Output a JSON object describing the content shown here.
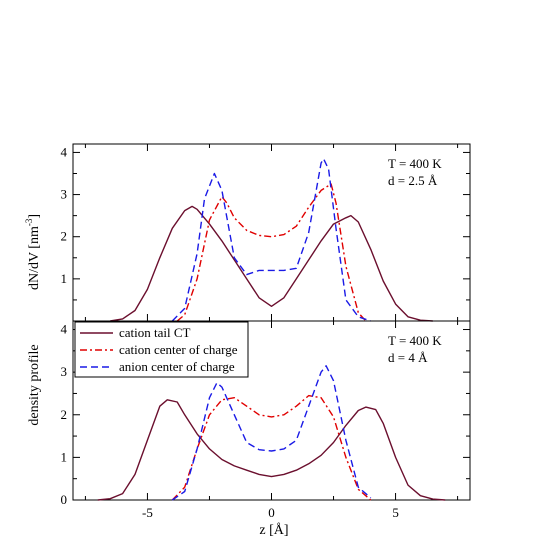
{
  "chart_data": {
    "type": "line",
    "xlabel": "z [Å]",
    "ylabel_left": "density profile",
    "ylabel_right": "dN/dV   [nm",
    "ylabel_right_exp": "-3",
    "ylabel_right_close": "]",
    "xlim": [
      -8,
      8
    ],
    "xticks": [
      -5,
      0,
      5
    ],
    "xtick_labels": [
      "-5",
      "0",
      "5"
    ],
    "colors": {
      "cation_tail": "#6b0f2e",
      "cation_center": "#e00000",
      "anion_center": "#1a1ae6"
    },
    "legend": {
      "placement": "top-left of lower panel",
      "entries": [
        {
          "name": "cation tail CT",
          "series": "cation_tail"
        },
        {
          "name": "cation center of charge",
          "series": "cation_center"
        },
        {
          "name": "anion center of charge",
          "series": "anion_center"
        }
      ]
    },
    "panels": [
      {
        "id": "top",
        "annotation_lines": [
          "T = 400 K",
          "d = 2.5 Å"
        ],
        "ylim": [
          0,
          4.2
        ],
        "yticks": [
          0,
          1,
          2,
          3,
          4
        ],
        "ytick_labels": [
          "",
          "1",
          "2",
          "3",
          "4"
        ],
        "series": [
          {
            "key": "cation_tail",
            "style": "solid",
            "x": [
              -6.5,
              -6.0,
              -5.5,
              -5.0,
              -4.5,
              -4.0,
              -3.5,
              -3.2,
              -3.0,
              -2.5,
              -2.0,
              -1.5,
              -1.0,
              -0.5,
              0.0,
              0.5,
              1.0,
              1.5,
              2.0,
              2.5,
              3.0,
              3.2,
              3.5,
              4.0,
              4.5,
              5.0,
              5.5,
              6.0,
              6.5
            ],
            "y": [
              0.0,
              0.05,
              0.25,
              0.75,
              1.5,
              2.2,
              2.62,
              2.72,
              2.65,
              2.3,
              1.9,
              1.45,
              1.0,
              0.55,
              0.35,
              0.55,
              1.0,
              1.45,
              1.9,
              2.3,
              2.45,
              2.5,
              2.35,
              1.7,
              0.95,
              0.4,
              0.1,
              0.02,
              0.0
            ]
          },
          {
            "key": "cation_center",
            "style": "dashdot",
            "x": [
              -3.8,
              -3.5,
              -3.0,
              -2.5,
              -2.0,
              -1.8,
              -1.5,
              -1.0,
              -0.5,
              0.0,
              0.5,
              1.0,
              1.5,
              2.0,
              2.4,
              2.6,
              3.0,
              3.5,
              3.8
            ],
            "y": [
              0.0,
              0.15,
              1.0,
              2.4,
              2.95,
              2.8,
              2.45,
              2.15,
              2.03,
              2.0,
              2.05,
              2.25,
              2.7,
              3.1,
              3.25,
              2.8,
              1.3,
              0.2,
              0.0
            ]
          },
          {
            "key": "anion_center",
            "style": "dashed",
            "x": [
              -4.0,
              -3.5,
              -3.0,
              -2.7,
              -2.3,
              -2.0,
              -1.5,
              -1.0,
              -0.5,
              0.0,
              0.5,
              1.0,
              1.5,
              2.0,
              2.1,
              2.3,
              2.6,
              3.0,
              3.5,
              4.0
            ],
            "y": [
              0.0,
              0.3,
              1.6,
              2.9,
              3.5,
              3.1,
              1.5,
              1.1,
              1.2,
              1.2,
              1.2,
              1.25,
              2.1,
              3.75,
              3.85,
              3.6,
              2.2,
              0.5,
              0.1,
              0.0
            ]
          }
        ]
      },
      {
        "id": "bottom",
        "annotation_lines": [
          "T = 400 K",
          "d = 4 Å"
        ],
        "ylim": [
          0,
          4.2
        ],
        "yticks": [
          0,
          1,
          2,
          3,
          4
        ],
        "ytick_labels": [
          "0",
          "1",
          "2",
          "3",
          "4"
        ],
        "series": [
          {
            "key": "cation_tail",
            "style": "solid",
            "x": [
              -7.0,
              -6.5,
              -6.0,
              -5.5,
              -5.0,
              -4.5,
              -4.2,
              -3.8,
              -3.5,
              -3.0,
              -2.5,
              -2.0,
              -1.5,
              -1.0,
              -0.5,
              0.0,
              0.5,
              1.0,
              1.5,
              2.0,
              2.5,
              3.0,
              3.5,
              3.8,
              4.2,
              4.5,
              5.0,
              5.5,
              6.0,
              6.5,
              7.0
            ],
            "y": [
              0.0,
              0.03,
              0.15,
              0.6,
              1.4,
              2.2,
              2.35,
              2.3,
              2.0,
              1.55,
              1.2,
              0.95,
              0.8,
              0.7,
              0.6,
              0.55,
              0.6,
              0.7,
              0.85,
              1.05,
              1.35,
              1.75,
              2.1,
              2.18,
              2.12,
              1.8,
              1.0,
              0.35,
              0.1,
              0.02,
              0.0
            ]
          },
          {
            "key": "cation_center",
            "style": "dashdot",
            "x": [
              -4.0,
              -3.5,
              -3.0,
              -2.5,
              -2.0,
              -1.5,
              -1.0,
              -0.5,
              0.0,
              0.5,
              1.0,
              1.5,
              2.0,
              2.5,
              3.0,
              3.5,
              4.0
            ],
            "y": [
              0.0,
              0.3,
              1.2,
              2.0,
              2.35,
              2.4,
              2.2,
              2.0,
              1.95,
              2.0,
              2.2,
              2.45,
              2.4,
              1.95,
              1.0,
              0.25,
              0.0
            ]
          },
          {
            "key": "anion_center",
            "style": "dashed",
            "x": [
              -4.0,
              -3.5,
              -3.0,
              -2.5,
              -2.2,
              -2.0,
              -1.5,
              -1.0,
              -0.5,
              0.0,
              0.5,
              1.0,
              1.5,
              2.0,
              2.2,
              2.5,
              3.0,
              3.5,
              4.0
            ],
            "y": [
              0.0,
              0.2,
              1.2,
              2.4,
              2.75,
              2.65,
              2.0,
              1.35,
              1.18,
              1.15,
              1.2,
              1.4,
              2.2,
              3.0,
              3.15,
              2.8,
              1.4,
              0.3,
              0.05
            ]
          }
        ]
      }
    ]
  }
}
